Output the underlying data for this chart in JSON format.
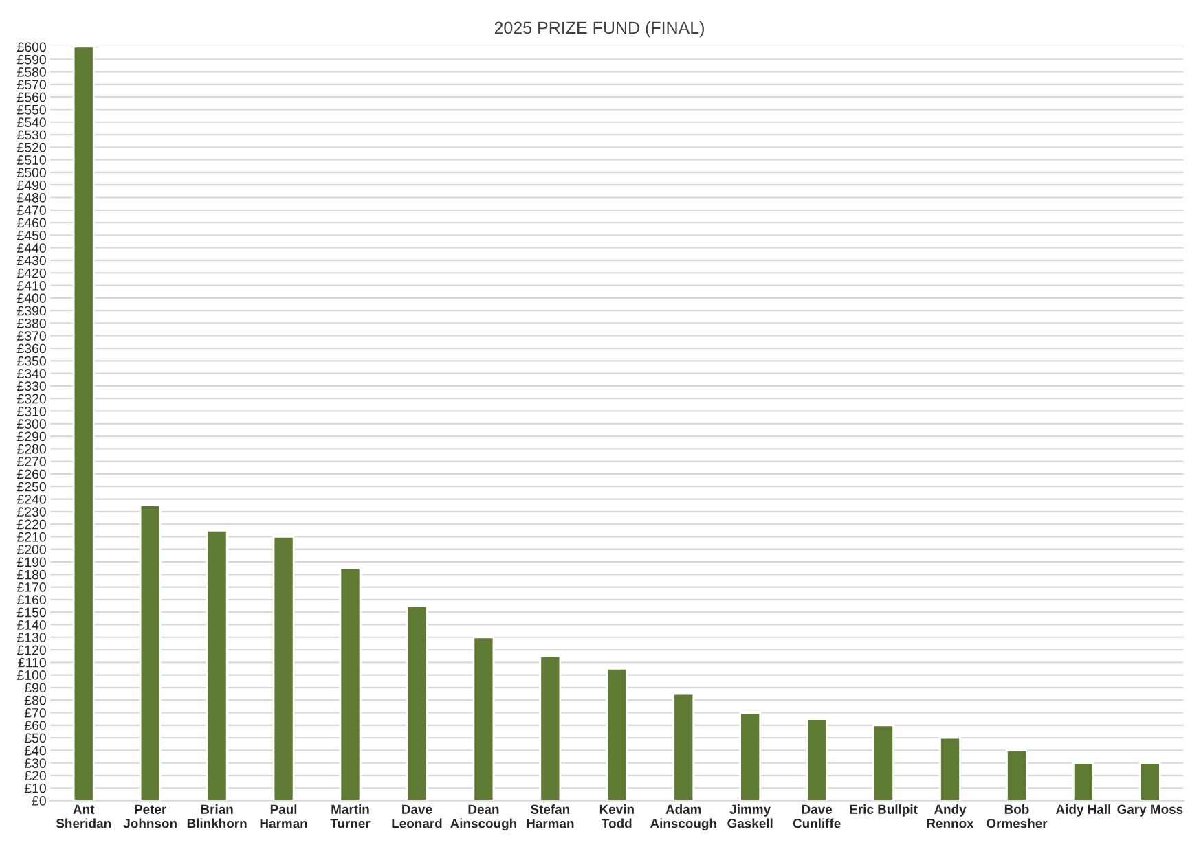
{
  "chart_data": {
    "type": "bar",
    "title": "2025 PRIZE FUND (FINAL)",
    "categories": [
      "Ant\nSheridan",
      "Peter\nJohnson",
      "Brian\nBlinkhorn",
      "Paul\nHarman",
      "Martin\nTurner",
      "Dave\nLeonard",
      "Dean\nAinscough",
      "Stefan\nHarman",
      "Kevin\nTodd",
      "Adam\nAinscough",
      "Jimmy\nGaskell",
      "Dave\nCunliffe",
      "Eric Bullpit",
      "Andy\nRennox",
      "Bob\nOrmesher",
      "Aidy Hall",
      "Gary Moss"
    ],
    "values": [
      600,
      235,
      215,
      210,
      185,
      155,
      130,
      115,
      105,
      85,
      70,
      65,
      60,
      50,
      40,
      30,
      30
    ],
    "color": "#5f7a32",
    "ylim": [
      0,
      600
    ],
    "yticks": [
      {
        "value": 0,
        "label": "£0"
      },
      {
        "value": 10,
        "label": "£10"
      },
      {
        "value": 20,
        "label": "£20"
      },
      {
        "value": 30,
        "label": "£30"
      },
      {
        "value": 40,
        "label": "£40"
      },
      {
        "value": 50,
        "label": "£50"
      },
      {
        "value": 60,
        "label": "£60"
      },
      {
        "value": 70,
        "label": "£70"
      },
      {
        "value": 80,
        "label": "£80"
      },
      {
        "value": 90,
        "label": "£90"
      },
      {
        "value": 100,
        "label": "£100"
      },
      {
        "value": 110,
        "label": "£110"
      },
      {
        "value": 120,
        "label": "£120"
      },
      {
        "value": 130,
        "label": "£130"
      },
      {
        "value": 140,
        "label": "£140"
      },
      {
        "value": 150,
        "label": "£150"
      },
      {
        "value": 160,
        "label": "£160"
      },
      {
        "value": 170,
        "label": "£170"
      },
      {
        "value": 180,
        "label": "£180"
      },
      {
        "value": 190,
        "label": "£190"
      },
      {
        "value": 200,
        "label": "£200"
      },
      {
        "value": 210,
        "label": "£210"
      },
      {
        "value": 220,
        "label": "£220"
      },
      {
        "value": 230,
        "label": "£230"
      },
      {
        "value": 240,
        "label": "£240"
      },
      {
        "value": 250,
        "label": "£250"
      },
      {
        "value": 260,
        "label": "£260"
      },
      {
        "value": 270,
        "label": "£270"
      },
      {
        "value": 280,
        "label": "£280"
      },
      {
        "value": 290,
        "label": "£290"
      },
      {
        "value": 300,
        "label": "£300"
      },
      {
        "value": 310,
        "label": "£310"
      },
      {
        "value": 320,
        "label": "£320"
      },
      {
        "value": 330,
        "label": "£330"
      },
      {
        "value": 340,
        "label": "£340"
      },
      {
        "value": 350,
        "label": "£350"
      },
      {
        "value": 360,
        "label": "£360"
      },
      {
        "value": 370,
        "label": "£370"
      },
      {
        "value": 380,
        "label": "£380"
      },
      {
        "value": 390,
        "label": "£390"
      },
      {
        "value": 400,
        "label": "£400"
      },
      {
        "value": 410,
        "label": "£410"
      },
      {
        "value": 420,
        "label": "£420"
      },
      {
        "value": 430,
        "label": "£430"
      },
      {
        "value": 440,
        "label": "£440"
      },
      {
        "value": 450,
        "label": "£450"
      },
      {
        "value": 460,
        "label": "£460"
      },
      {
        "value": 470,
        "label": "£470"
      },
      {
        "value": 480,
        "label": "£480"
      },
      {
        "value": 490,
        "label": "£490"
      },
      {
        "value": 500,
        "label": "£500"
      },
      {
        "value": 510,
        "label": "£510"
      },
      {
        "value": 520,
        "label": "£520"
      },
      {
        "value": 530,
        "label": "£530"
      },
      {
        "value": 540,
        "label": "£540"
      },
      {
        "value": 550,
        "label": "£550"
      },
      {
        "value": 560,
        "label": "£560"
      },
      {
        "value": 570,
        "label": "£570"
      },
      {
        "value": 580,
        "label": "£580"
      },
      {
        "value": 590,
        "label": "£590"
      },
      {
        "value": 600,
        "label": "£600"
      }
    ],
    "grid": "y",
    "legend": false
  }
}
